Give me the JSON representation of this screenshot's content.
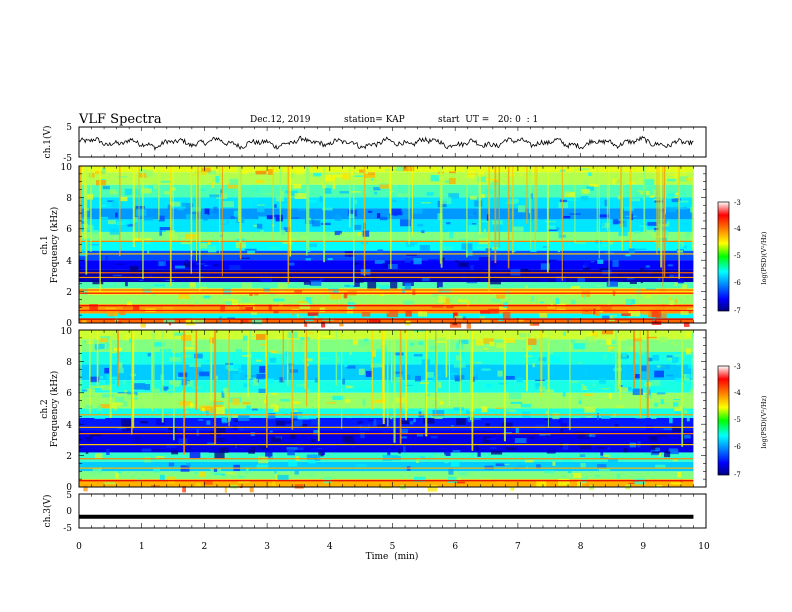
{
  "header": {
    "title": "VLF Spectra",
    "date": "Dec.12, 2019",
    "station": "station= KAP",
    "start": "start  UT =   20: 0  : 1"
  },
  "chart_data": [
    {
      "id": "ch1-waveform",
      "type": "line",
      "ylabel": "ch.1(V)",
      "ylim": [
        -5,
        5
      ],
      "yticks": [
        "5",
        "-5"
      ],
      "xlim": [
        0,
        10
      ],
      "samples": 600,
      "x_end": 9.8,
      "mean": -0.3,
      "amplitude": 1.4,
      "color": "#000000"
    },
    {
      "id": "ch1-spectrogram",
      "type": "heatmap",
      "ylabel": "ch.1\nFrequency  (kHz)",
      "ylim": [
        0,
        10
      ],
      "yticks": [
        "0",
        "2",
        "4",
        "6",
        "8",
        "10"
      ],
      "xlim": [
        0,
        10
      ],
      "x_end": 9.8,
      "rows": [
        {
          "f0": 10.0,
          "f1": 9.6,
          "v": -4.6
        },
        {
          "f0": 9.6,
          "f1": 8.8,
          "v": -4.8
        },
        {
          "f0": 8.8,
          "f1": 8.0,
          "v": -5.2
        },
        {
          "f0": 8.0,
          "f1": 7.3,
          "v": -5.6
        },
        {
          "f0": 7.3,
          "f1": 6.6,
          "v": -5.9
        },
        {
          "f0": 6.6,
          "f1": 5.8,
          "v": -5.6
        },
        {
          "f0": 5.8,
          "f1": 5.2,
          "v": -5.0
        },
        {
          "f0": 5.2,
          "f1": 4.6,
          "v": -5.5
        },
        {
          "f0": 4.6,
          "f1": 4.0,
          "v": -6.2
        },
        {
          "f0": 4.0,
          "f1": 3.4,
          "v": -6.5
        },
        {
          "f0": 3.4,
          "f1": 2.6,
          "v": -6.8
        },
        {
          "f0": 2.6,
          "f1": 2.2,
          "v": -5.2
        },
        {
          "f0": 2.2,
          "f1": 1.8,
          "v": -4.4
        },
        {
          "f0": 1.8,
          "f1": 1.2,
          "v": -4.9
        },
        {
          "f0": 1.2,
          "f1": 0.6,
          "v": -4.1
        },
        {
          "f0": 0.6,
          "f1": 0.3,
          "v": -5.5
        },
        {
          "f0": 0.3,
          "f1": 0.0,
          "v": -3.9
        }
      ],
      "lines": [
        {
          "f": 5.2,
          "v": -4.0
        },
        {
          "f": 4.4,
          "v": -4.3
        },
        {
          "f": 3.2,
          "v": -3.9
        },
        {
          "f": 2.9,
          "v": -4.1
        },
        {
          "f": 2.1,
          "v": -3.8
        },
        {
          "f": 1.9,
          "v": -3.5
        },
        {
          "f": 1.1,
          "v": -3.4
        },
        {
          "f": 0.8,
          "v": -3.6
        },
        {
          "f": 0.25,
          "v": -3.2
        }
      ],
      "bursts": 70
    },
    {
      "id": "ch2-spectrogram",
      "type": "heatmap",
      "ylabel": "ch.2\nFrequency  (kHz)",
      "ylim": [
        0,
        10
      ],
      "yticks": [
        "0",
        "2",
        "4",
        "6",
        "8",
        "10"
      ],
      "xlim": [
        0,
        10
      ],
      "x_end": 9.8,
      "rows": [
        {
          "f0": 10.0,
          "f1": 9.4,
          "v": -4.7
        },
        {
          "f0": 9.4,
          "f1": 8.6,
          "v": -5.0
        },
        {
          "f0": 8.6,
          "f1": 7.8,
          "v": -5.4
        },
        {
          "f0": 7.8,
          "f1": 6.8,
          "v": -5.7
        },
        {
          "f0": 6.8,
          "f1": 6.0,
          "v": -5.4
        },
        {
          "f0": 6.0,
          "f1": 5.0,
          "v": -4.9
        },
        {
          "f0": 5.0,
          "f1": 4.4,
          "v": -5.4
        },
        {
          "f0": 4.4,
          "f1": 3.6,
          "v": -6.4
        },
        {
          "f0": 3.6,
          "f1": 2.2,
          "v": -6.6
        },
        {
          "f0": 2.2,
          "f1": 1.6,
          "v": -5.3
        },
        {
          "f0": 1.6,
          "f1": 1.0,
          "v": -5.7
        },
        {
          "f0": 1.0,
          "f1": 0.5,
          "v": -5.0
        },
        {
          "f0": 0.5,
          "f1": 0.0,
          "v": -4.2
        }
      ],
      "lines": [
        {
          "f": 4.6,
          "v": -4.1
        },
        {
          "f": 3.8,
          "v": -4.2
        },
        {
          "f": 3.4,
          "v": -4.0
        },
        {
          "f": 2.7,
          "v": -4.3
        },
        {
          "f": 1.8,
          "v": -4.0
        },
        {
          "f": 1.2,
          "v": -4.2
        },
        {
          "f": 0.4,
          "v": -3.4
        }
      ],
      "bursts": 60
    },
    {
      "id": "ch3-waveform",
      "type": "line",
      "ylabel": "ch.3(V)",
      "ylim": [
        -5,
        5
      ],
      "yticks": [
        "5",
        "0",
        "-5"
      ],
      "xlim": [
        0,
        10
      ],
      "x_end": 9.8,
      "level": -1.7,
      "xlabel": "Time  (min)",
      "xticks": [
        "0",
        "1",
        "2",
        "3",
        "4",
        "5",
        "6",
        "7",
        "8",
        "9",
        "10"
      ],
      "color": "#000000"
    }
  ],
  "colorbar": {
    "label": "log(PSD)(V²/Hz)",
    "range": [
      -7,
      -3
    ],
    "ticks": [
      "-3",
      "-4",
      "-5",
      "-6",
      "-7"
    ]
  }
}
